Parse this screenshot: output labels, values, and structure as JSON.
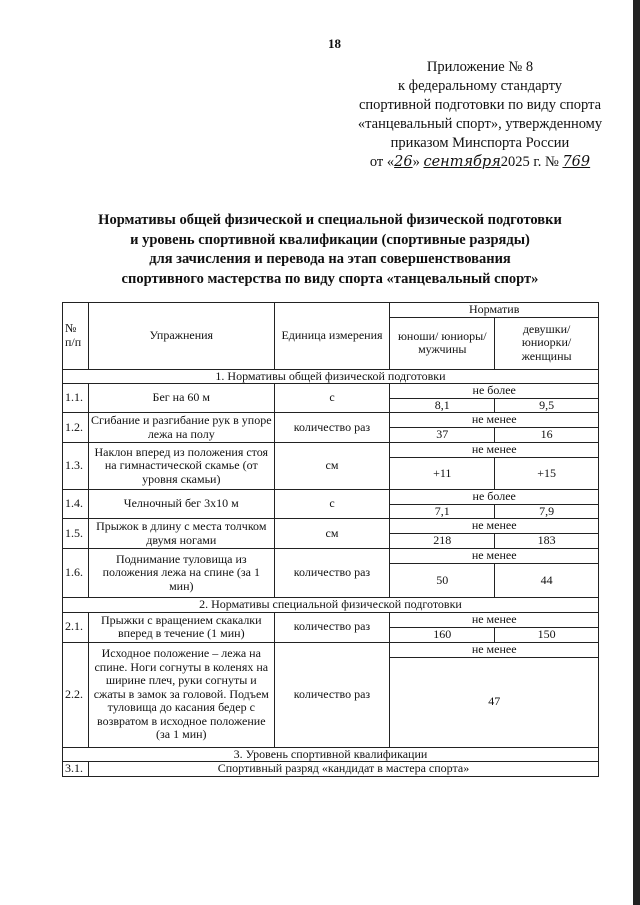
{
  "page_number": "18",
  "appendix": {
    "lines": [
      "Приложение № 8",
      "к федеральному стандарту",
      "спортивной подготовки по виду спорта",
      "«танцевальный спорт», утвержденному",
      "приказом Минспорта России"
    ],
    "date_prefix": "от «",
    "day": "26",
    "mid": "» ",
    "month": "сентября",
    "year": "2025 г. № ",
    "number": "769"
  },
  "title": [
    "Нормативы общей физической и специальной физической подготовки",
    "и уровень спортивной квалификации (спортивные разряды)",
    "для зачисления и перевода на этап совершенствования",
    "спортивного мастерства по виду спорта «танцевальный спорт»"
  ],
  "table": {
    "headers": {
      "num": "№ п/п",
      "exercise": "Упражнения",
      "unit": "Единица измерения",
      "norm": "Норматив",
      "boys": "юноши/ юниоры/ мужчины",
      "girls": "девушки/ юниорки/ женщины"
    },
    "section1": "1. Нормативы общей физической подготовки",
    "section2": "2. Нормативы специальной физической подготовки",
    "section3": "3. Уровень спортивной квалификации",
    "rows": [
      {
        "num": "1.1.",
        "exercise": "Бег на 60 м",
        "unit": "с",
        "cond": "не более",
        "boys": "8,1",
        "girls": "9,5"
      },
      {
        "num": "1.2.",
        "exercise": "Сгибание и разгибание рук в упоре лежа на полу",
        "unit": "количество раз",
        "cond": "не менее",
        "boys": "37",
        "girls": "16"
      },
      {
        "num": "1.3.",
        "exercise": "Наклон вперед из положения стоя на гимнастической скамье (от уровня скамьи)",
        "unit": "см",
        "cond": "не менее",
        "boys": "+11",
        "girls": "+15"
      },
      {
        "num": "1.4.",
        "exercise": "Челночный бег 3х10 м",
        "unit": "с",
        "cond": "не более",
        "boys": "7,1",
        "girls": "7,9"
      },
      {
        "num": "1.5.",
        "exercise": "Прыжок в длину с места толчком двумя ногами",
        "unit": "см",
        "cond": "не менее",
        "boys": "218",
        "girls": "183"
      },
      {
        "num": "1.6.",
        "exercise": "Поднимание туловища из положения лежа на спине (за 1 мин)",
        "unit": "количество раз",
        "cond": "не менее",
        "boys": "50",
        "girls": "44"
      },
      {
        "num": "2.1.",
        "exercise": "Прыжки с вращением скакалки вперед в течение (1 мин)",
        "unit": "количество раз",
        "cond": "не менее",
        "boys": "160",
        "girls": "150"
      },
      {
        "num": "2.2.",
        "exercise": "Исходное положение – лежа на спине. Ноги согнуты в коленях на ширине плеч, руки согнуты и сжаты в замок за головой. Подъем туловища до касания бедер с возвратом в исходное положение (за 1 мин)",
        "unit": "количество раз",
        "cond": "не менее",
        "both": "47"
      },
      {
        "num": "3.1.",
        "exercise": "Спортивный разряд «кандидат в мастера спорта»"
      }
    ]
  }
}
